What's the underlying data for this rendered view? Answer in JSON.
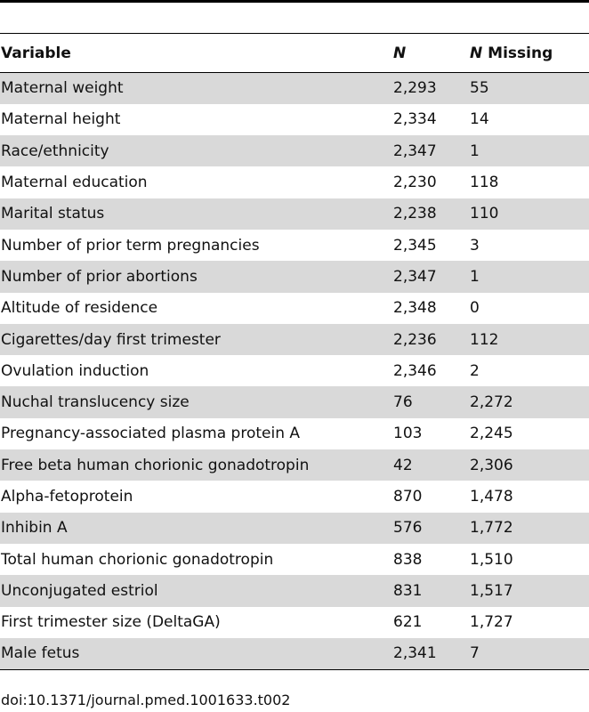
{
  "table": {
    "headers": {
      "variable": "Variable",
      "n_italic": "N",
      "missing_italic": "N",
      "missing_rest": " Missing"
    },
    "rows": [
      {
        "variable": "Maternal weight",
        "n": "2,293",
        "missing": "55"
      },
      {
        "variable": "Maternal height",
        "n": "2,334",
        "missing": "14"
      },
      {
        "variable": "Race/ethnicity",
        "n": "2,347",
        "missing": "1"
      },
      {
        "variable": "Maternal education",
        "n": "2,230",
        "missing": "118"
      },
      {
        "variable": "Marital status",
        "n": "2,238",
        "missing": "110"
      },
      {
        "variable": "Number of prior term pregnancies",
        "n": "2,345",
        "missing": "3"
      },
      {
        "variable": "Number of prior abortions",
        "n": "2,347",
        "missing": "1"
      },
      {
        "variable": "Altitude of residence",
        "n": "2,348",
        "missing": "0"
      },
      {
        "variable": "Cigarettes/day first trimester",
        "n": "2,236",
        "missing": "112"
      },
      {
        "variable": "Ovulation induction",
        "n": "2,346",
        "missing": "2"
      },
      {
        "variable": "Nuchal translucency size",
        "n": "76",
        "missing": "2,272"
      },
      {
        "variable": "Pregnancy-associated plasma protein A",
        "n": "103",
        "missing": "2,245"
      },
      {
        "variable": "Free beta human chorionic gonadotropin",
        "n": "42",
        "missing": "2,306"
      },
      {
        "variable": "Alpha-fetoprotein",
        "n": "870",
        "missing": "1,478"
      },
      {
        "variable": "Inhibin A",
        "n": "576",
        "missing": "1,772"
      },
      {
        "variable": "Total human chorionic gonadotropin",
        "n": "838",
        "missing": "1,510"
      },
      {
        "variable": "Unconjugated estriol",
        "n": "831",
        "missing": "1,517"
      },
      {
        "variable": "First trimester size (DeltaGA)",
        "n": "621",
        "missing": "1,727"
      },
      {
        "variable": "Male fetus",
        "n": "2,341",
        "missing": "7"
      }
    ]
  },
  "doi": "doi:10.1371/journal.pmed.1001633.t002"
}
